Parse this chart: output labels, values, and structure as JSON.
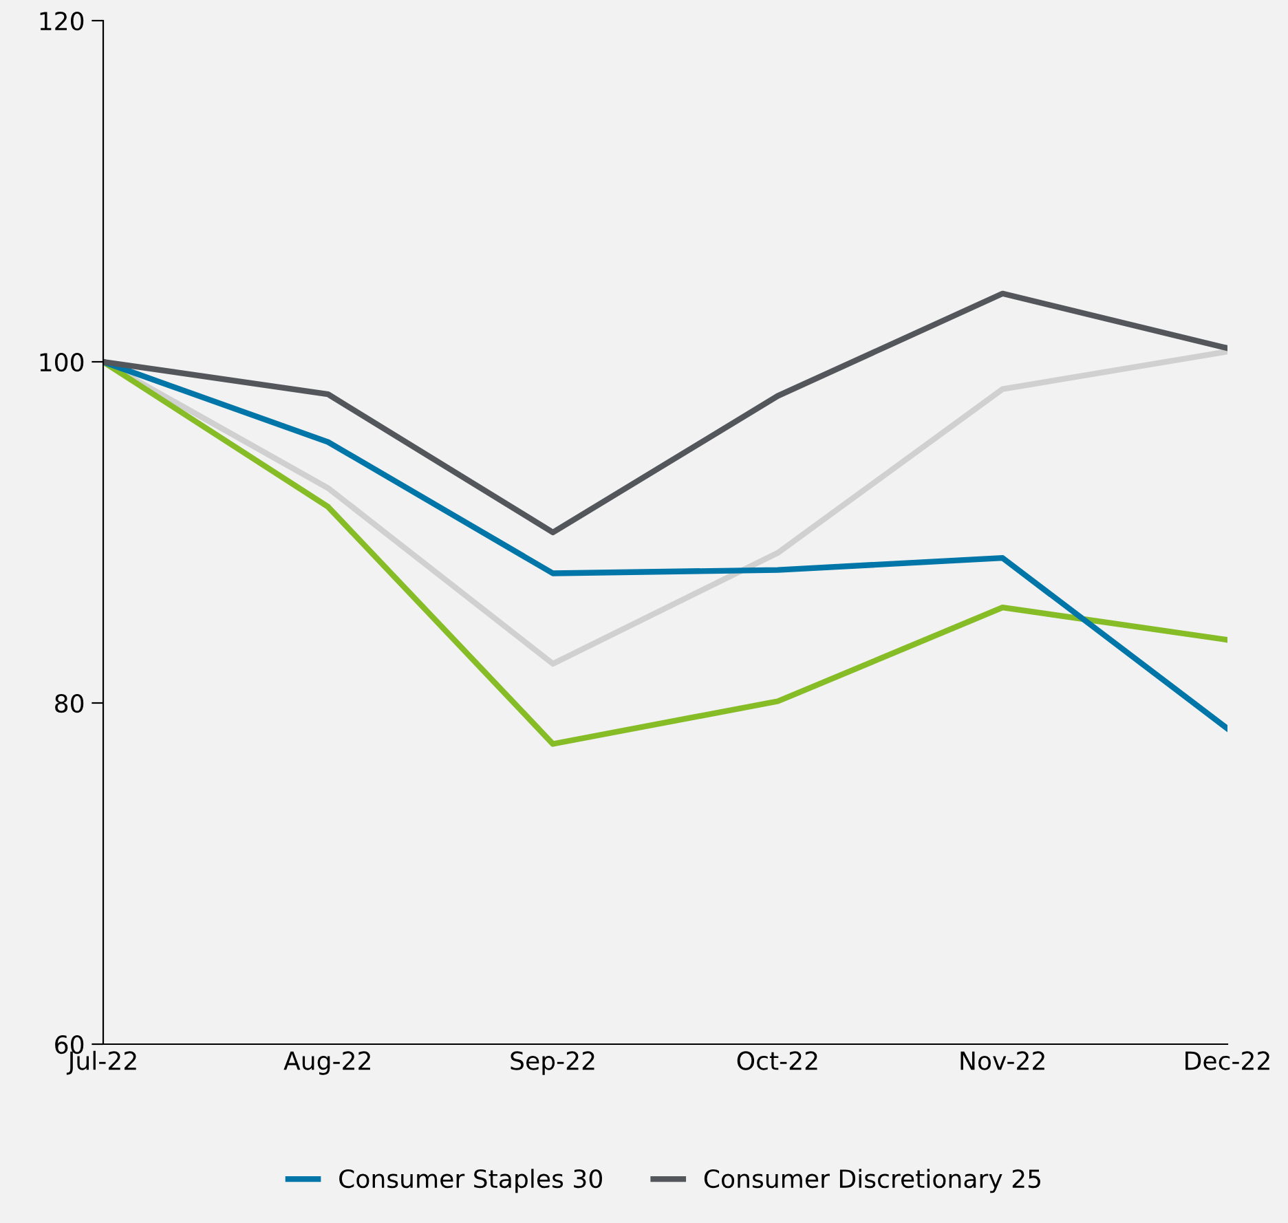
{
  "chart_data": {
    "type": "line",
    "categories": [
      "Jul-22",
      "Aug-22",
      "Sep-22",
      "Oct-22",
      "Nov-22",
      "Dec-22"
    ],
    "series": [
      {
        "color": "#d0d0d0",
        "values": [
          100,
          92.6,
          82.3,
          88.8,
          98.4,
          100.6
        ]
      },
      {
        "color": "#86bc25",
        "values": [
          100,
          91.5,
          77.6,
          80.1,
          85.6,
          83.7
        ]
      },
      {
        "name": "Consumer Staples 30",
        "color": "#0076a8",
        "values": [
          100,
          95.3,
          87.6,
          87.8,
          88.5,
          78.5
        ]
      },
      {
        "name": "Consumer Discretionary 25",
        "color": "#53565a",
        "values": [
          100,
          98.1,
          90.0,
          98.0,
          104.0,
          100.8
        ]
      }
    ],
    "ylim": [
      60,
      120
    ],
    "yticks": [
      60,
      80,
      100,
      120
    ],
    "grid": false,
    "legend": "bottom",
    "marker": "none",
    "line_style": "solid"
  }
}
